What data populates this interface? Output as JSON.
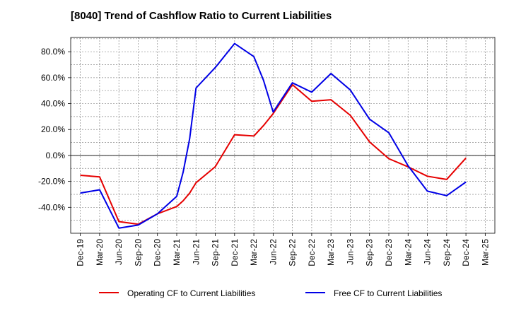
{
  "chart_data": {
    "type": "line",
    "title": "[8040]  Trend of Cashflow Ratio to Current Liabilities",
    "xlabel": "",
    "ylabel": "",
    "x_ticks": [
      "Dec-19",
      "Mar-20",
      "Jun-20",
      "Sep-20",
      "Dec-20",
      "Mar-21",
      "Jun-21",
      "Sep-21",
      "Dec-21",
      "Mar-22",
      "Jun-22",
      "Sep-22",
      "Dec-22",
      "Mar-23",
      "Jun-23",
      "Sep-23",
      "Dec-23",
      "Mar-24",
      "Jun-24",
      "Sep-24",
      "Dec-24",
      "Mar-25"
    ],
    "y_ticks": [
      "80.0%",
      "60.0%",
      "40.0%",
      "20.0%",
      "0.0%",
      "-20.0%",
      "-40.0%"
    ],
    "y_tick_values": [
      80,
      60,
      40,
      20,
      0,
      -20,
      -40
    ],
    "ylim": [
      -60,
      91
    ],
    "grid": true,
    "legend_position": "bottom",
    "series": [
      {
        "name": "Operating CF to Current Liabilities",
        "color": "#e60000",
        "x": [
          0,
          1,
          2,
          3,
          4,
          5,
          5.33,
          5.67,
          6,
          7,
          8,
          9,
          9.5,
          10,
          11,
          12,
          13,
          14,
          15,
          16,
          17,
          18,
          19,
          20
        ],
        "y": [
          -15.3,
          -16.5,
          -51,
          -53,
          -45,
          -39.4,
          -35,
          -29,
          -21,
          -8.7,
          16,
          15,
          23,
          32.3,
          54.6,
          41.8,
          43,
          31,
          10.5,
          -2.5,
          -8.8,
          -16,
          -18.5,
          -2
        ]
      },
      {
        "name": "Free CF to Current Liabilities",
        "color": "#0000e6",
        "x": [
          0,
          1,
          2,
          3,
          4,
          5,
          5.33,
          5.67,
          6,
          7,
          8,
          9,
          9.5,
          10,
          11,
          12,
          13,
          14,
          15,
          16,
          17,
          18,
          19,
          20
        ],
        "y": [
          -29,
          -26.5,
          -56,
          -53.7,
          -45,
          -31.5,
          -13,
          13,
          52,
          67.8,
          86.3,
          76.2,
          58,
          33.5,
          56,
          48.8,
          63.2,
          50.5,
          28,
          17.5,
          -8,
          -27.5,
          -31,
          -20.5
        ]
      }
    ]
  }
}
